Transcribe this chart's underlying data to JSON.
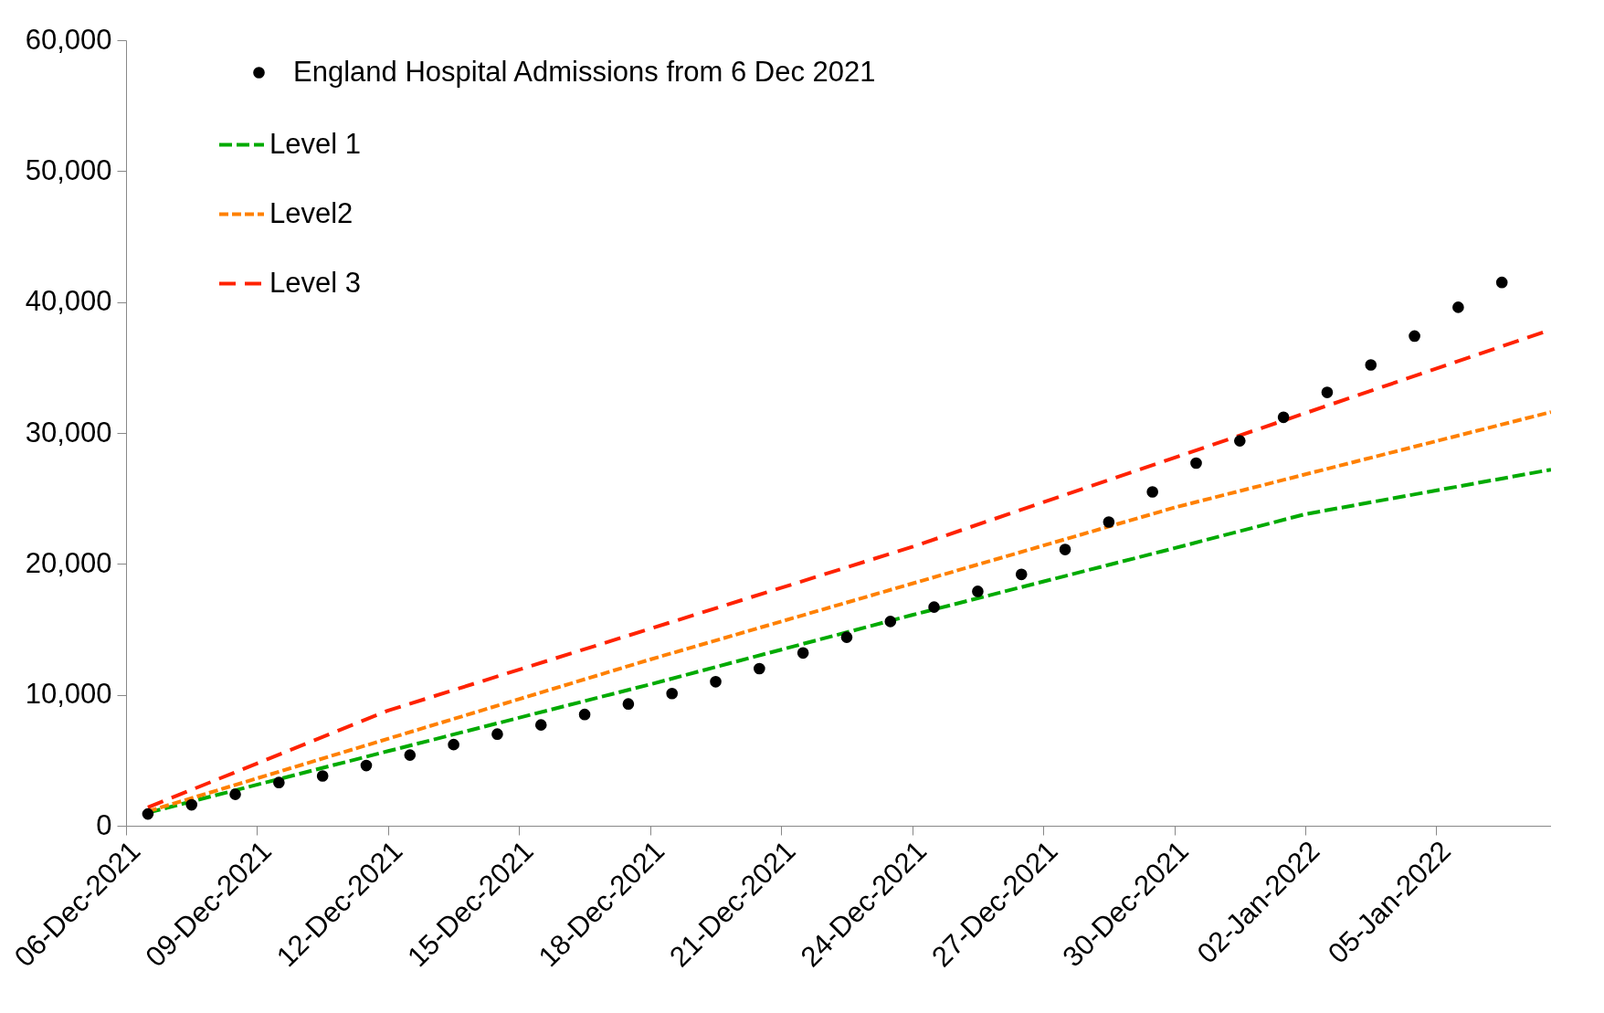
{
  "chart_data": {
    "type": "scatter",
    "legend": "top left",
    "grid": false,
    "xlim": [
      "2021-12-06",
      "2022-01-07T15:00"
    ],
    "xticks": [
      {
        "value": "2021-12-06",
        "label": "06-Dec-2021"
      },
      {
        "value": "2021-12-09",
        "label": "09-Dec-2021"
      },
      {
        "value": "2021-12-12",
        "label": "12-Dec-2021"
      },
      {
        "value": "2021-12-15",
        "label": "15-Dec-2021"
      },
      {
        "value": "2021-12-18",
        "label": "18-Dec-2021"
      },
      {
        "value": "2021-12-21",
        "label": "21-Dec-2021"
      },
      {
        "value": "2021-12-24",
        "label": "24-Dec-2021"
      },
      {
        "value": "2021-12-27",
        "label": "27-Dec-2021"
      },
      {
        "value": "2021-12-30",
        "label": "30-Dec-2021"
      },
      {
        "value": "2022-01-02",
        "label": "02-Jan-2022"
      },
      {
        "value": "2022-01-05",
        "label": "05-Jan-2022"
      }
    ],
    "ylim": [
      0,
      60000
    ],
    "yticks": [
      0,
      {
        "value": 10000,
        "label": "10,000"
      },
      {
        "value": 20000,
        "label": "20,000"
      },
      {
        "value": 30000,
        "label": "30,000"
      },
      {
        "value": 40000,
        "label": "40,000"
      },
      {
        "value": 50000,
        "label": "50,000"
      },
      {
        "value": 60000,
        "label": "60,000"
      }
    ],
    "series": [
      {
        "name": "England Hospital Admissions from 6 Dec 2021",
        "marker": "circle",
        "color": "#000000",
        "x": [
          "2021-12-06T12:00",
          "2021-12-07T12:00",
          "2021-12-08T12:00",
          "2021-12-09T12:00",
          "2021-12-10T12:00",
          "2021-12-11T12:00",
          "2021-12-12T12:00",
          "2021-12-13T12:00",
          "2021-12-14T12:00",
          "2021-12-15T12:00",
          "2021-12-16T12:00",
          "2021-12-17T12:00",
          "2021-12-18T12:00",
          "2021-12-19T12:00",
          "2021-12-20T12:00",
          "2021-12-21T12:00",
          "2021-12-22T12:00",
          "2021-12-23T12:00",
          "2021-12-24T12:00",
          "2021-12-25T12:00",
          "2021-12-26T12:00",
          "2021-12-27T12:00",
          "2021-12-28T12:00",
          "2021-12-29T12:00",
          "2021-12-30T12:00",
          "2021-12-31T12:00",
          "2022-01-01T12:00",
          "2022-01-02T12:00",
          "2022-01-03T12:00",
          "2022-01-04T12:00",
          "2022-01-05T12:00",
          "2022-01-06T12:00"
        ],
        "values": [
          900,
          1600,
          2400,
          3300,
          3800,
          4600,
          5400,
          6200,
          7000,
          7700,
          8500,
          9300,
          10100,
          11000,
          12000,
          13200,
          14400,
          15600,
          16700,
          17900,
          19200,
          21100,
          23200,
          25500,
          27700,
          29400,
          31200,
          33100,
          35200,
          37400,
          39600,
          41500
        ]
      },
      {
        "name": "Level 1",
        "type": "line",
        "line_style": "dashed",
        "color": "#00aa00",
        "x": [
          "2021-12-06T12:00",
          "2021-12-12",
          "2021-12-18",
          "2021-12-24",
          "2021-12-30",
          "2022-01-02",
          "2022-01-07T15:00"
        ],
        "values": [
          1000,
          5700,
          10800,
          16100,
          21200,
          23800,
          27200
        ]
      },
      {
        "name": "Level2",
        "type": "line",
        "line_style": "dashed",
        "color": "#ff8000",
        "x": [
          "2021-12-06T12:00",
          "2021-12-18",
          "2021-12-30",
          "2022-01-07T15:00"
        ],
        "values": [
          1100,
          12700,
          24300,
          31600
        ]
      },
      {
        "name": "Level 3",
        "type": "line",
        "line_style": "dashed",
        "color": "#ff2200",
        "x": [
          "2021-12-06T12:00",
          "2021-12-12",
          "2021-12-24",
          "2022-01-07T15:00"
        ],
        "values": [
          1400,
          8800,
          21300,
          37900
        ]
      }
    ]
  }
}
